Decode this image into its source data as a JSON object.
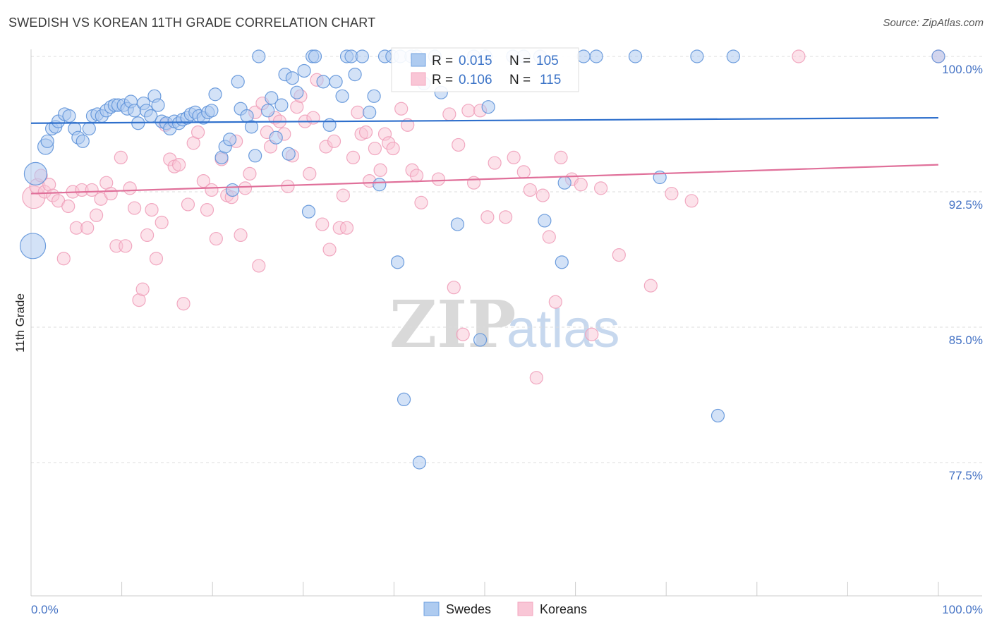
{
  "title": "SWEDISH VS KOREAN 11TH GRADE CORRELATION CHART",
  "source": "Source: ZipAtlas.com",
  "watermark": {
    "zip": "ZIP",
    "atlas": "atlas"
  },
  "legend_top": {
    "rows": [
      {
        "r_label": "R =",
        "r_value": "0.015",
        "n_label": "N =",
        "n_value": "105"
      },
      {
        "r_label": "R =",
        "r_value": "0.106",
        "n_label": "N =",
        "n_value": "115"
      }
    ]
  },
  "legend_bottom": {
    "swedes": "Swedes",
    "koreans": "Koreans"
  },
  "chart_data": {
    "type": "scatter",
    "title": "SWEDISH VS KOREAN 11TH GRADE CORRELATION CHART",
    "xlabel": "",
    "ylabel": "11th Grade",
    "xlim": [
      0,
      100
    ],
    "ylim": [
      70.5,
      101.3
    ],
    "x_tick_labels": [
      "0.0%",
      "100.0%"
    ],
    "y_ticks": [
      77.5,
      85.0,
      92.5,
      100.0
    ],
    "y_tick_labels": [
      "77.5%",
      "85.0%",
      "92.5%",
      "100.0%"
    ],
    "grid": true,
    "legend_position": "top-center",
    "colors": {
      "swedes": "#6fa0e0",
      "koreans": "#f4a6bf",
      "swedes_line": "#2e6fcc",
      "koreans_line": "#e0709a"
    },
    "series": [
      {
        "name": "Swedes",
        "r": 0.015,
        "n": 105,
        "trend": {
          "x": [
            0,
            100
          ],
          "y": [
            96.3,
            96.6
          ]
        },
        "points": [
          [
            0.5,
            93.5,
            16
          ],
          [
            0.2,
            89.5,
            18
          ],
          [
            1.6,
            95.0,
            11
          ],
          [
            1.8,
            95.3,
            9
          ],
          [
            2.3,
            96.0,
            9
          ],
          [
            2.7,
            96.1,
            9
          ],
          [
            3.0,
            96.4,
            9
          ],
          [
            3.7,
            96.8,
            9
          ],
          [
            4.2,
            96.7,
            9
          ],
          [
            4.8,
            96.0,
            9
          ],
          [
            5.2,
            95.5,
            9
          ],
          [
            5.7,
            95.3,
            9
          ],
          [
            6.4,
            96.0,
            9
          ],
          [
            6.8,
            96.7,
            9
          ],
          [
            7.3,
            96.8,
            9
          ],
          [
            7.8,
            96.7,
            9
          ],
          [
            8.3,
            97.0,
            9
          ],
          [
            8.8,
            97.2,
            9
          ],
          [
            9.2,
            97.3,
            9
          ],
          [
            9.6,
            97.3,
            9
          ],
          [
            10.2,
            97.3,
            9
          ],
          [
            10.6,
            97.1,
            9
          ],
          [
            11.0,
            97.5,
            9
          ],
          [
            11.4,
            97.0,
            9
          ],
          [
            11.8,
            96.3,
            9
          ],
          [
            12.4,
            97.4,
            9
          ],
          [
            12.7,
            97.0,
            9
          ],
          [
            13.2,
            96.7,
            9
          ],
          [
            13.6,
            97.8,
            9
          ],
          [
            14.0,
            97.3,
            9
          ],
          [
            14.4,
            96.4,
            9
          ],
          [
            14.9,
            96.3,
            9
          ],
          [
            15.3,
            96.0,
            9
          ],
          [
            15.8,
            96.4,
            9
          ],
          [
            16.3,
            96.3,
            9
          ],
          [
            16.7,
            96.5,
            9
          ],
          [
            17.2,
            96.6,
            9
          ],
          [
            17.6,
            96.8,
            9
          ],
          [
            18.1,
            96.9,
            9
          ],
          [
            18.5,
            96.7,
            9
          ],
          [
            19.0,
            96.6,
            9
          ],
          [
            19.5,
            96.9,
            9
          ],
          [
            19.9,
            97.0,
            9
          ],
          [
            20.3,
            97.9,
            9
          ],
          [
            21.0,
            94.4,
            9
          ],
          [
            21.4,
            95.0,
            9
          ],
          [
            21.9,
            95.4,
            9
          ],
          [
            22.2,
            92.6,
            9
          ],
          [
            22.8,
            98.6,
            9
          ],
          [
            23.1,
            97.1,
            9
          ],
          [
            23.8,
            96.7,
            9
          ],
          [
            24.3,
            96.1,
            9
          ],
          [
            24.7,
            94.5,
            9
          ],
          [
            25.1,
            100.0,
            9
          ],
          [
            26.1,
            97.0,
            9
          ],
          [
            26.5,
            97.7,
            9
          ],
          [
            27.0,
            95.5,
            9
          ],
          [
            27.6,
            97.3,
            9
          ],
          [
            28.0,
            99.0,
            9
          ],
          [
            28.4,
            94.6,
            9
          ],
          [
            28.8,
            98.8,
            9
          ],
          [
            29.3,
            98.0,
            9
          ],
          [
            30.1,
            99.2,
            9
          ],
          [
            30.6,
            91.4,
            9
          ],
          [
            31.0,
            100.0,
            9
          ],
          [
            31.3,
            100.0,
            9
          ],
          [
            32.2,
            98.6,
            9
          ],
          [
            32.9,
            96.2,
            9
          ],
          [
            33.6,
            98.6,
            9
          ],
          [
            34.3,
            97.8,
            9
          ],
          [
            34.8,
            100.0,
            9
          ],
          [
            35.3,
            100.0,
            9
          ],
          [
            35.7,
            99.0,
            9
          ],
          [
            36.5,
            100.0,
            9
          ],
          [
            37.3,
            96.9,
            9
          ],
          [
            37.8,
            97.8,
            9
          ],
          [
            38.4,
            92.9,
            9
          ],
          [
            39.0,
            100.0,
            9
          ],
          [
            39.8,
            100.0,
            9
          ],
          [
            40.4,
            88.6,
            9
          ],
          [
            40.7,
            100.0,
            9
          ],
          [
            41.1,
            81.0,
            9
          ],
          [
            41.9,
            100.0,
            9
          ],
          [
            42.5,
            100.0,
            9
          ],
          [
            42.8,
            77.5,
            9
          ],
          [
            43.3,
            98.5,
            9
          ],
          [
            44.5,
            100.0,
            9
          ],
          [
            45.2,
            98.0,
            9
          ],
          [
            47.0,
            90.7,
            9
          ],
          [
            48.8,
            100.0,
            9
          ],
          [
            49.5,
            84.3,
            9
          ],
          [
            50.1,
            100.0,
            9
          ],
          [
            50.4,
            97.2,
            9
          ],
          [
            53.1,
            100.0,
            9
          ],
          [
            54.3,
            100.0,
            9
          ],
          [
            56.1,
            100.0,
            9
          ],
          [
            56.6,
            90.9,
            9
          ],
          [
            58.5,
            88.6,
            9
          ],
          [
            58.8,
            93.0,
            9
          ],
          [
            60.9,
            100.0,
            9
          ],
          [
            62.3,
            100.0,
            9
          ],
          [
            66.6,
            100.0,
            9
          ],
          [
            69.3,
            93.3,
            9
          ],
          [
            73.4,
            100.0,
            9
          ],
          [
            75.7,
            80.1,
            9
          ],
          [
            77.4,
            100.0,
            9
          ],
          [
            100.0,
            100.0,
            9
          ]
        ]
      },
      {
        "name": "Koreans",
        "r": 0.106,
        "n": 115,
        "trend": {
          "x": [
            0,
            100
          ],
          "y": [
            92.4,
            94.0
          ]
        },
        "points": [
          [
            0.3,
            92.2,
            16
          ],
          [
            0.7,
            92.8,
            11
          ],
          [
            1.1,
            93.4,
            9
          ],
          [
            1.5,
            92.5,
            9
          ],
          [
            2.0,
            92.9,
            9
          ],
          [
            2.4,
            92.3,
            9
          ],
          [
            3.0,
            92.0,
            9
          ],
          [
            3.6,
            88.8,
            9
          ],
          [
            4.1,
            91.7,
            9
          ],
          [
            4.6,
            92.5,
            9
          ],
          [
            5.0,
            90.5,
            9
          ],
          [
            5.6,
            92.6,
            9
          ],
          [
            6.2,
            90.5,
            9
          ],
          [
            6.7,
            92.6,
            9
          ],
          [
            7.2,
            91.2,
            9
          ],
          [
            7.7,
            92.1,
            9
          ],
          [
            8.3,
            93.0,
            9
          ],
          [
            8.8,
            92.4,
            9
          ],
          [
            9.4,
            89.5,
            9
          ],
          [
            9.9,
            94.4,
            9
          ],
          [
            10.4,
            89.5,
            9
          ],
          [
            10.9,
            92.7,
            9
          ],
          [
            11.4,
            91.6,
            9
          ],
          [
            11.9,
            86.5,
            9
          ],
          [
            12.3,
            87.1,
            9
          ],
          [
            12.8,
            90.1,
            9
          ],
          [
            13.3,
            91.5,
            9
          ],
          [
            13.8,
            88.8,
            9
          ],
          [
            14.4,
            90.8,
            9
          ],
          [
            14.8,
            96.2,
            9
          ],
          [
            15.3,
            94.3,
            9
          ],
          [
            15.8,
            93.9,
            9
          ],
          [
            16.3,
            94.0,
            9
          ],
          [
            16.8,
            86.3,
            9
          ],
          [
            17.3,
            91.8,
            9
          ],
          [
            17.9,
            95.2,
            9
          ],
          [
            18.4,
            95.8,
            9
          ],
          [
            19.0,
            93.1,
            9
          ],
          [
            19.4,
            91.5,
            9
          ],
          [
            19.9,
            92.6,
            9
          ],
          [
            20.4,
            89.9,
            9
          ],
          [
            21.0,
            94.3,
            9
          ],
          [
            21.6,
            92.3,
            9
          ],
          [
            22.1,
            92.2,
            9
          ],
          [
            22.6,
            95.3,
            9
          ],
          [
            23.1,
            90.1,
            9
          ],
          [
            23.6,
            92.7,
            9
          ],
          [
            24.1,
            93.5,
            9
          ],
          [
            24.7,
            96.9,
            9
          ],
          [
            25.1,
            88.4,
            9
          ],
          [
            25.5,
            97.4,
            9
          ],
          [
            26.0,
            95.8,
            9
          ],
          [
            26.4,
            95.0,
            9
          ],
          [
            26.9,
            96.6,
            9
          ],
          [
            27.4,
            96.4,
            9
          ],
          [
            27.9,
            95.7,
            9
          ],
          [
            28.3,
            92.8,
            9
          ],
          [
            28.8,
            94.5,
            9
          ],
          [
            29.3,
            97.2,
            9
          ],
          [
            29.7,
            97.8,
            9
          ],
          [
            30.2,
            96.4,
            9
          ],
          [
            30.7,
            93.5,
            9
          ],
          [
            31.1,
            96.6,
            9
          ],
          [
            31.5,
            98.7,
            9
          ],
          [
            32.1,
            90.7,
            9
          ],
          [
            32.5,
            95.0,
            9
          ],
          [
            32.9,
            89.3,
            9
          ],
          [
            33.4,
            95.3,
            9
          ],
          [
            34.0,
            90.5,
            9
          ],
          [
            34.4,
            92.3,
            9
          ],
          [
            34.8,
            90.5,
            9
          ],
          [
            35.5,
            94.4,
            9
          ],
          [
            36.0,
            96.9,
            9
          ],
          [
            36.4,
            95.7,
            9
          ],
          [
            36.9,
            95.8,
            9
          ],
          [
            37.3,
            93.1,
            9
          ],
          [
            37.9,
            94.9,
            9
          ],
          [
            38.5,
            93.7,
            9
          ],
          [
            39.0,
            95.7,
            9
          ],
          [
            39.4,
            95.2,
            9
          ],
          [
            39.9,
            94.9,
            9
          ],
          [
            40.8,
            97.1,
            9
          ],
          [
            41.5,
            96.2,
            9
          ],
          [
            42.0,
            93.7,
            9
          ],
          [
            42.5,
            93.4,
            9
          ],
          [
            43.0,
            91.9,
            9
          ],
          [
            44.9,
            93.2,
            9
          ],
          [
            46.1,
            96.8,
            9
          ],
          [
            46.6,
            87.2,
            9
          ],
          [
            47.1,
            95.1,
            9
          ],
          [
            47.6,
            84.6,
            9
          ],
          [
            48.2,
            97.0,
            9
          ],
          [
            48.8,
            93.0,
            9
          ],
          [
            49.5,
            97.0,
            9
          ],
          [
            50.3,
            91.1,
            9
          ],
          [
            51.1,
            94.1,
            9
          ],
          [
            52.3,
            91.1,
            9
          ],
          [
            53.2,
            94.4,
            9
          ],
          [
            54.3,
            93.6,
            9
          ],
          [
            55.0,
            92.6,
            9
          ],
          [
            55.7,
            82.2,
            9
          ],
          [
            56.4,
            92.3,
            9
          ],
          [
            57.1,
            90.0,
            9
          ],
          [
            57.8,
            86.4,
            9
          ],
          [
            58.4,
            94.4,
            9
          ],
          [
            59.6,
            93.2,
            9
          ],
          [
            60.6,
            92.9,
            9
          ],
          [
            61.8,
            84.6,
            9
          ],
          [
            62.8,
            92.7,
            9
          ],
          [
            64.8,
            89.0,
            9
          ],
          [
            68.3,
            87.3,
            9
          ],
          [
            70.6,
            92.4,
            9
          ],
          [
            72.8,
            92.0,
            9
          ],
          [
            84.6,
            100.0,
            9
          ],
          [
            100.0,
            100.0,
            9
          ]
        ]
      }
    ]
  }
}
